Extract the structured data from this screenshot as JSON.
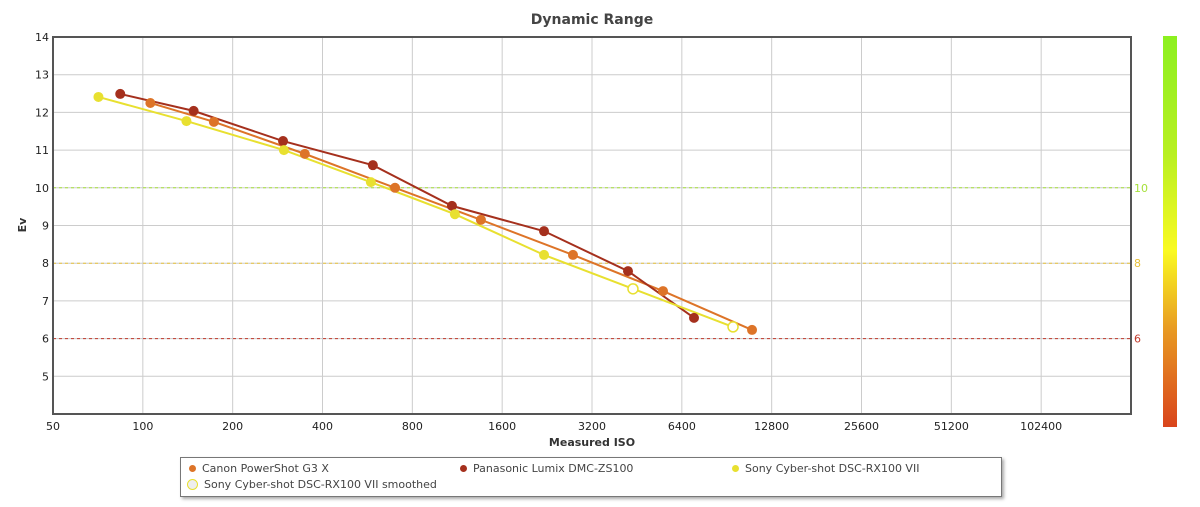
{
  "chart_data": {
    "type": "line",
    "title": "Dynamic Range",
    "xlabel": "Measured ISO",
    "ylabel": "Ev",
    "xscale": "log2",
    "xlim": [
      50,
      204800
    ],
    "ylim": [
      4,
      14
    ],
    "x_ticks": [
      "50",
      "100",
      "200",
      "400",
      "800",
      "1600",
      "3200",
      "6400",
      "12800",
      "25600",
      "51200",
      "102400"
    ],
    "x_tick_values": [
      50,
      100,
      200,
      400,
      800,
      1600,
      3200,
      6400,
      12800,
      25600,
      51200,
      102400
    ],
    "y_ticks": [
      "5",
      "6",
      "7",
      "8",
      "9",
      "10",
      "11",
      "12",
      "13",
      "14"
    ],
    "y_tick_values": [
      5,
      6,
      7,
      8,
      9,
      10,
      11,
      12,
      13,
      14
    ],
    "reference_lines": [
      {
        "value": 10,
        "label": "10",
        "color": "#a6e03a"
      },
      {
        "value": 8,
        "label": "8",
        "color": "#e8c13a"
      },
      {
        "value": 6,
        "label": "6",
        "color": "#c0392b"
      }
    ],
    "colorbar": {
      "colors": [
        "#d9441c",
        "#f0a020",
        "#fafa20",
        "#c6f020",
        "#8cf020"
      ]
    },
    "legend_position": "bottom",
    "series": [
      {
        "name": "Canon PowerShot G3 X",
        "color": "#dd7428",
        "points": [
          [
            106,
            12.25
          ],
          [
            173,
            11.75
          ],
          [
            349,
            10.9
          ],
          [
            700,
            10.0
          ],
          [
            1358,
            9.15
          ],
          [
            2763,
            8.22
          ],
          [
            5535,
            7.26
          ],
          [
            11000,
            6.23
          ]
        ]
      },
      {
        "name": "Panasonic Lumix DMC-ZS100",
        "color": "#a5301d",
        "points": [
          [
            84,
            12.49
          ],
          [
            148,
            12.04
          ],
          [
            295,
            11.24
          ],
          [
            590,
            10.6
          ],
          [
            1086,
            9.52
          ],
          [
            2210,
            8.85
          ],
          [
            4225,
            7.79
          ],
          [
            7030,
            6.55
          ]
        ]
      },
      {
        "name": "Sony Cyber-shot DSC-RX100 VII",
        "color": "#e8e030",
        "points": [
          [
            71,
            12.41
          ],
          [
            140,
            11.77
          ],
          [
            297,
            11.0
          ],
          [
            581,
            10.15
          ],
          [
            1111,
            9.3
          ],
          [
            2210,
            8.22
          ]
        ]
      },
      {
        "name": "Sony Cyber-shot DSC-RX100 VII smoothed",
        "color": "#e8e030",
        "hollow": true,
        "points": [
          [
            4390,
            7.32
          ],
          [
            9500,
            6.31
          ]
        ]
      }
    ]
  }
}
